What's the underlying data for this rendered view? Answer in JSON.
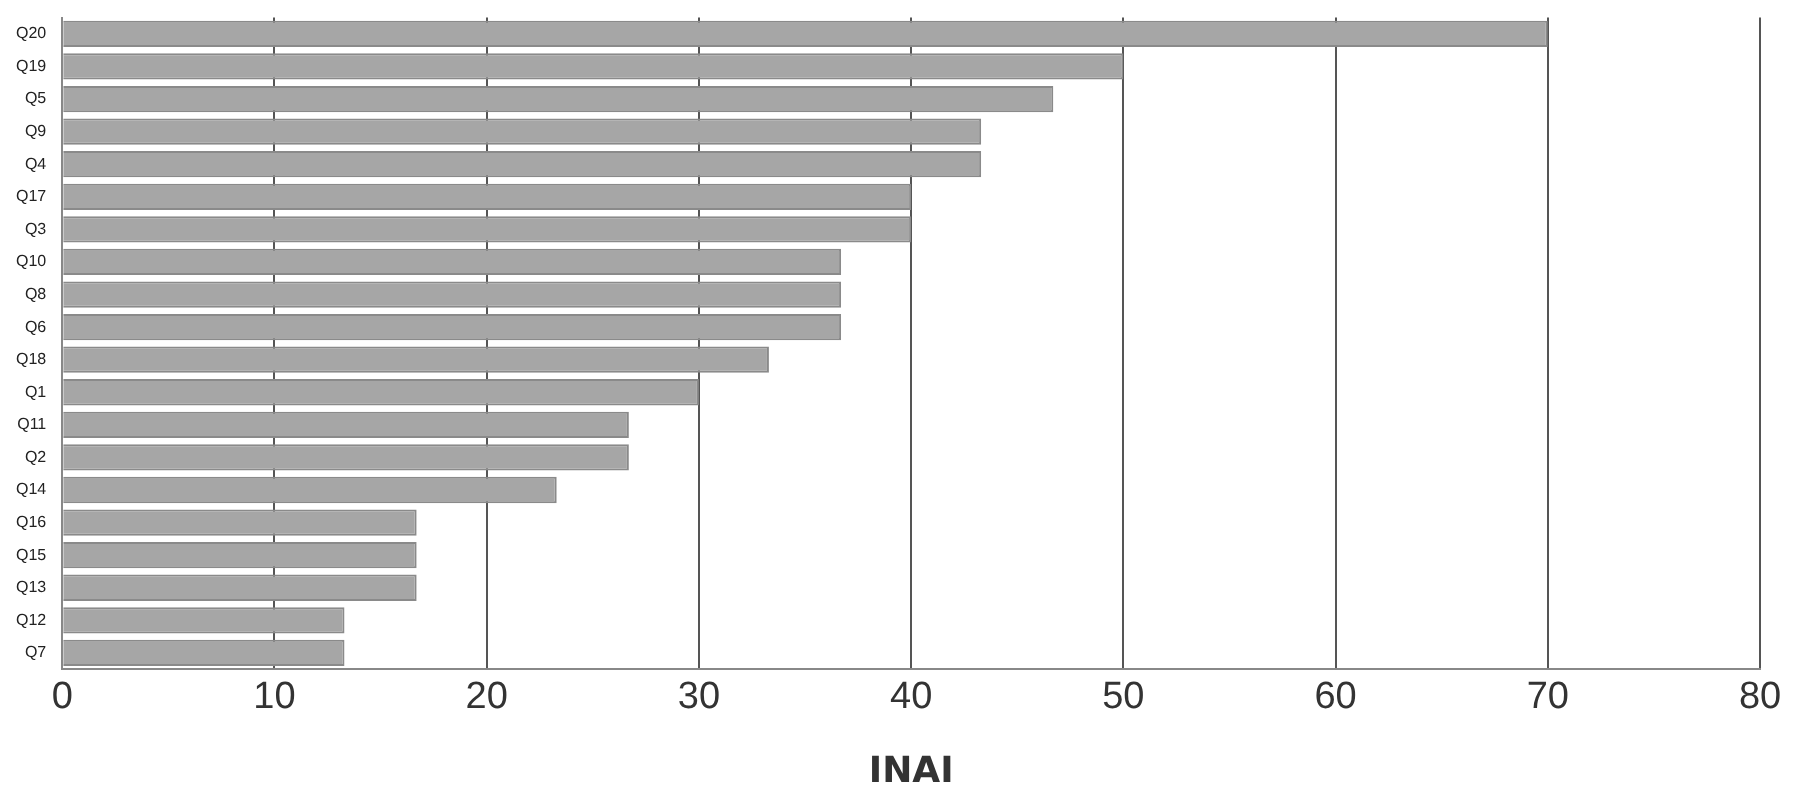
{
  "chart_data": {
    "type": "bar",
    "orientation": "horizontal",
    "xlabel": "INAI",
    "categories": [
      "Q20",
      "Q19",
      "Q5",
      "Q9",
      "Q4",
      "Q17",
      "Q3",
      "Q10",
      "Q8",
      "Q6",
      "Q18",
      "Q1",
      "Q11",
      "Q2",
      "Q14",
      "Q16",
      "Q15",
      "Q13",
      "Q12",
      "Q7"
    ],
    "values": [
      70,
      50,
      46.7,
      43.3,
      43.3,
      40,
      40,
      36.7,
      36.7,
      36.7,
      33.3,
      30,
      26.7,
      26.7,
      23.3,
      16.7,
      16.7,
      16.7,
      13.3,
      13.3
    ],
    "color": "#a6a6a6",
    "xlim": [
      0,
      80
    ],
    "xticks": [
      0,
      10,
      20,
      30,
      40,
      50,
      60,
      70,
      80
    ],
    "grid": "x",
    "legend": false
  }
}
